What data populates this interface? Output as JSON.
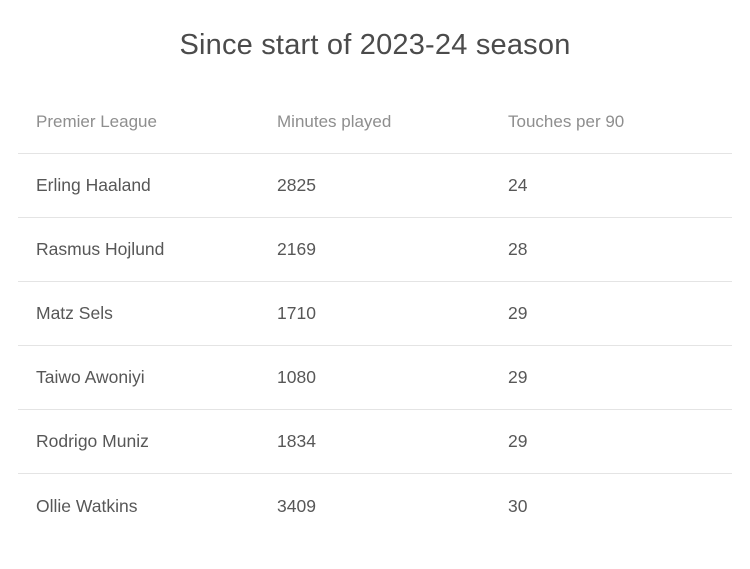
{
  "title": "Since start of 2023-24 season",
  "colors": {
    "background": "#ffffff",
    "title_text": "#4b4b4b",
    "header_text": "#8e8e8e",
    "body_text": "#575757",
    "divider": "#e4e4e4"
  },
  "table": {
    "columns": {
      "col1": "Premier League",
      "col2": "Minutes played",
      "col3": "Touches per 90"
    },
    "rows": [
      {
        "player": "Erling Haaland",
        "minutes": "2825",
        "touches": "24"
      },
      {
        "player": "Rasmus Hojlund",
        "minutes": "2169",
        "touches": "28"
      },
      {
        "player": "Matz Sels",
        "minutes": "1710",
        "touches": "29"
      },
      {
        "player": "Taiwo Awoniyi",
        "minutes": "1080",
        "touches": "29"
      },
      {
        "player": "Rodrigo Muniz",
        "minutes": "1834",
        "touches": "29"
      },
      {
        "player": "Ollie Watkins",
        "minutes": "3409",
        "touches": "30"
      }
    ]
  },
  "chart_data": {
    "type": "table",
    "title": "Since start of 2023-24 season",
    "columns": [
      "Premier League",
      "Minutes played",
      "Touches per 90"
    ],
    "rows": [
      [
        "Erling Haaland",
        2825,
        24
      ],
      [
        "Rasmus Hojlund",
        2169,
        28
      ],
      [
        "Matz Sels",
        1710,
        29
      ],
      [
        "Taiwo Awoniyi",
        1080,
        29
      ],
      [
        "Rodrigo Muniz",
        1834,
        29
      ],
      [
        "Ollie Watkins",
        3409,
        30
      ]
    ]
  }
}
